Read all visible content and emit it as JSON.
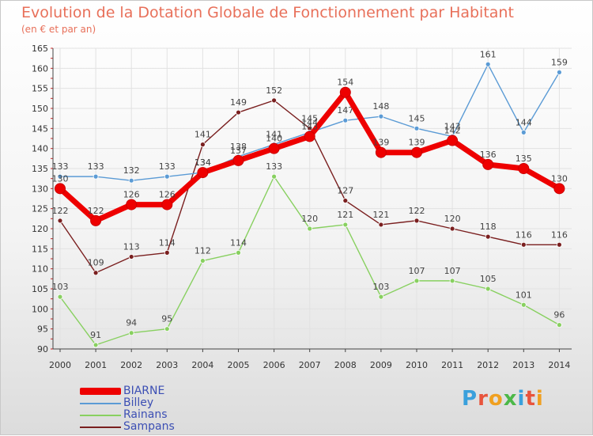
{
  "header": {
    "title": "Evolution de la Dotation Globale de Fonctionnement par Habitant",
    "subtitle": "(en € et par an)"
  },
  "brand": {
    "text": "Proxiti",
    "letter_colors": [
      "#3aa0dc",
      "#e8543c",
      "#f0a020",
      "#4cb848",
      "#3aa0dc",
      "#e8543c",
      "#f0a020"
    ]
  },
  "chart_data": {
    "type": "line",
    "title": "Evolution de la Dotation Globale de Fonctionnement par Habitant",
    "subtitle": "(en € et par an)",
    "x": [
      "2000",
      "2001",
      "2002",
      "2003",
      "2004",
      "2005",
      "2006",
      "2007",
      "2008",
      "2009",
      "2010",
      "2011",
      "2012",
      "2013",
      "2014"
    ],
    "ylim": [
      90,
      165
    ],
    "yticks": [
      90,
      95,
      100,
      105,
      110,
      115,
      120,
      125,
      130,
      135,
      140,
      145,
      150,
      155,
      160,
      165
    ],
    "grid": true,
    "legend_position": "bottom-left",
    "series": [
      {
        "name": "Sampans",
        "color": "#7a1f1f",
        "values": [
          122,
          109,
          113,
          114,
          141,
          149,
          152,
          145,
          127,
          121,
          122,
          120,
          118,
          116,
          116
        ],
        "labels": [
          "122",
          "109",
          "113",
          "114",
          "141",
          "149",
          "152",
          "145",
          "127",
          "121",
          "122",
          "120",
          "118",
          "116",
          "116"
        ]
      },
      {
        "name": "Rainans",
        "color": "#88d060",
        "values": [
          103,
          91,
          94,
          95,
          112,
          114,
          133,
          120,
          121,
          103,
          107,
          107,
          105,
          101,
          96
        ],
        "labels": [
          "103",
          "91",
          "94",
          "95",
          "112",
          "114",
          "133",
          "120",
          "121",
          "103",
          "107",
          "107",
          "105",
          "101",
          "96"
        ]
      },
      {
        "name": "Billey",
        "color": "#5b9bd5",
        "values": [
          133,
          133,
          132,
          133,
          134,
          138,
          141,
          144,
          147,
          148,
          145,
          143,
          161,
          144,
          159
        ],
        "labels": [
          "133",
          "133",
          "132",
          "133",
          "134",
          "138",
          "141",
          "144",
          "147",
          "148",
          "145",
          "143",
          "161",
          "144",
          "159"
        ]
      },
      {
        "name": "BIARNE",
        "color": "#ee0000",
        "values": [
          130,
          122,
          126,
          126,
          134,
          137,
          140,
          143,
          154,
          139,
          139,
          142,
          136,
          135,
          130
        ],
        "labels": [
          "130",
          "122",
          "126",
          "126",
          "134",
          "137",
          "140",
          "143",
          "154",
          "139",
          "139",
          "142",
          "136",
          "135",
          "130"
        ]
      }
    ],
    "legend": [
      "BIARNE",
      "Billey",
      "Rainans",
      "Sampans"
    ]
  }
}
